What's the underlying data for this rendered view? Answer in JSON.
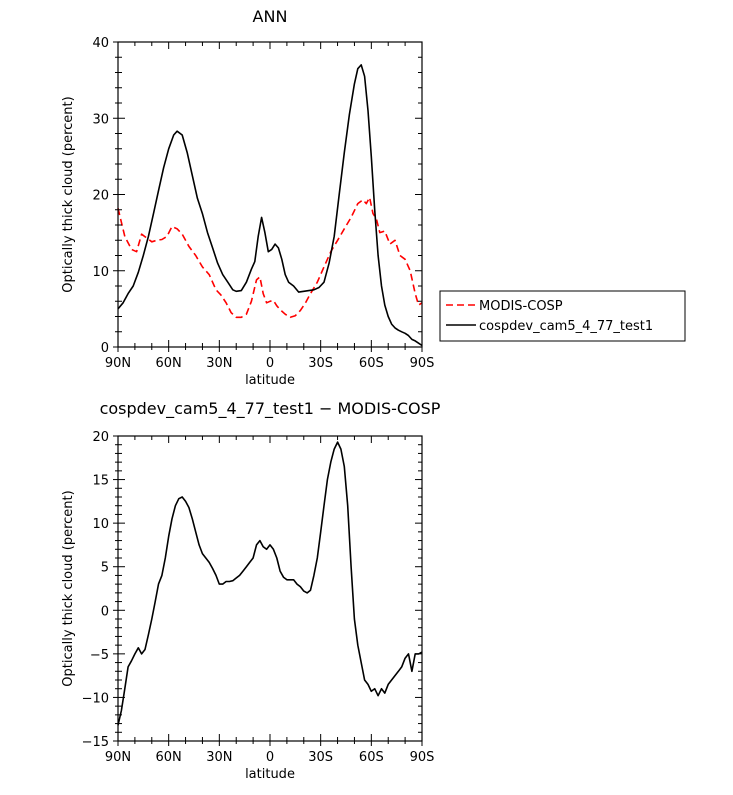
{
  "chart_data": [
    {
      "type": "line",
      "title": "ANN",
      "xlabel": "latitude",
      "ylabel": "Optically thick cloud (percent)",
      "xlim": [
        90,
        -90
      ],
      "ylim": [
        0,
        40
      ],
      "xticks": [
        90,
        60,
        30,
        0,
        -30,
        -60,
        -90
      ],
      "xtick_labels": [
        "90N",
        "60N",
        "30N",
        "0",
        "30S",
        "60S",
        "90S"
      ],
      "yticks": [
        0,
        10,
        20,
        30,
        40
      ],
      "ytick_labels": [
        "0",
        "10",
        "20",
        "30",
        "40"
      ],
      "legend": {
        "placement": "outside-right",
        "entries": [
          "MODIS-COSP",
          "cospdev_cam5_4_77_test1"
        ]
      },
      "series": [
        {
          "name": "MODIS-COSP",
          "color": "#ff0000",
          "style": "dashed",
          "x": [
            90,
            86,
            82,
            79,
            76,
            73,
            70,
            67,
            64,
            61,
            58,
            55,
            52,
            48,
            44,
            40,
            36,
            32,
            29,
            26,
            23,
            20,
            17,
            14,
            11,
            8,
            6,
            4,
            2,
            0,
            -2,
            -4,
            -6,
            -9,
            -12,
            -15,
            -18,
            -21,
            -24,
            -28,
            -32,
            -36,
            -40,
            -44,
            -48,
            -52,
            -55,
            -57,
            -59,
            -61,
            -63,
            -65,
            -68,
            -71,
            -74,
            -77,
            -80,
            -83,
            -86,
            -88,
            -90
          ],
          "y": [
            18.2,
            14.5,
            12.8,
            12.5,
            14.8,
            14.3,
            13.8,
            14.0,
            14.1,
            14.5,
            15.8,
            15.5,
            14.8,
            13.2,
            12.0,
            10.5,
            9.5,
            7.5,
            6.8,
            5.8,
            4.5,
            3.9,
            3.9,
            4.3,
            6.0,
            8.8,
            9.2,
            7.0,
            5.8,
            6.0,
            6.1,
            5.4,
            4.9,
            4.3,
            3.9,
            4.1,
            4.8,
            5.8,
            7.0,
            8.5,
            10.5,
            12.5,
            14.0,
            15.5,
            17.0,
            18.8,
            19.3,
            18.8,
            19.6,
            17.5,
            16.8,
            15.0,
            15.2,
            13.5,
            14.0,
            12.0,
            11.5,
            10.0,
            7.0,
            5.5,
            5.8
          ]
        },
        {
          "name": "cospdev_cam5_4_77_test1",
          "color": "#000000",
          "style": "solid",
          "x": [
            90,
            87,
            84,
            81,
            78,
            75,
            72,
            69,
            66,
            63,
            60,
            57,
            55,
            52,
            49,
            46,
            43,
            40,
            37,
            34,
            31,
            28,
            25,
            22,
            20,
            17,
            14,
            11,
            9,
            7,
            5,
            3,
            1,
            -1,
            -3,
            -5,
            -7,
            -9,
            -11,
            -14,
            -17,
            -20,
            -23,
            -26,
            -29,
            -32,
            -35,
            -38,
            -41,
            -44,
            -47,
            -50,
            -52,
            -54,
            -56,
            -58,
            -60,
            -62,
            -64,
            -66,
            -68,
            -70,
            -72,
            -74,
            -76,
            -78,
            -80,
            -82,
            -84,
            -86,
            -88,
            -90
          ],
          "y": [
            5.0,
            5.8,
            7.0,
            8.0,
            9.8,
            12.0,
            14.5,
            17.5,
            20.5,
            23.5,
            26.0,
            27.8,
            28.3,
            27.8,
            25.5,
            22.5,
            19.5,
            17.5,
            15.0,
            13.0,
            11.0,
            9.5,
            8.5,
            7.5,
            7.3,
            7.4,
            8.5,
            10.2,
            11.2,
            14.5,
            17.0,
            15.0,
            12.5,
            12.8,
            13.5,
            13.0,
            11.5,
            9.5,
            8.5,
            8.0,
            7.2,
            7.3,
            7.4,
            7.5,
            7.8,
            8.5,
            11.0,
            14.5,
            20.0,
            25.5,
            30.5,
            34.5,
            36.5,
            37.0,
            35.5,
            31.0,
            25.0,
            18.0,
            12.0,
            8.0,
            5.5,
            4.0,
            3.0,
            2.5,
            2.2,
            2.0,
            1.8,
            1.5,
            1.0,
            0.8,
            0.5,
            0.2
          ]
        }
      ]
    },
    {
      "type": "line",
      "title": "cospdev_cam5_4_77_test1 − MODIS-COSP",
      "xlabel": "latitude",
      "ylabel": "Optically thick cloud (percent)",
      "xlim": [
        90,
        -90
      ],
      "ylim": [
        -15,
        20
      ],
      "xticks": [
        90,
        60,
        30,
        0,
        -30,
        -60,
        -90
      ],
      "xtick_labels": [
        "90N",
        "60N",
        "30N",
        "0",
        "30S",
        "60S",
        "90S"
      ],
      "yticks": [
        -15,
        -10,
        -5,
        0,
        5,
        10,
        15,
        20
      ],
      "ytick_labels": [
        "−15",
        "−10",
        "−5",
        "0",
        "5",
        "10",
        "15",
        "20"
      ],
      "series": [
        {
          "color": "#000000",
          "style": "solid",
          "x": [
            90,
            88,
            86,
            84,
            82,
            80,
            78,
            76,
            74,
            72,
            70,
            68,
            66,
            64,
            62,
            60,
            58,
            56,
            54,
            52,
            50,
            48,
            46,
            44,
            42,
            40,
            38,
            36,
            34,
            32,
            30,
            28,
            26,
            24,
            22,
            20,
            18,
            16,
            14,
            12,
            10,
            8,
            6,
            4,
            2,
            0,
            -2,
            -4,
            -6,
            -8,
            -10,
            -12,
            -14,
            -16,
            -18,
            -20,
            -22,
            -24,
            -26,
            -28,
            -30,
            -32,
            -34,
            -36,
            -38,
            -40,
            -42,
            -44,
            -46,
            -48,
            -50,
            -52,
            -54,
            -56,
            -58,
            -60,
            -62,
            -64,
            -66,
            -68,
            -70,
            -72,
            -74,
            -76,
            -78,
            -80,
            -82,
            -84,
            -86,
            -88,
            -90
          ],
          "y": [
            -13.2,
            -11.5,
            -9.0,
            -6.5,
            -5.8,
            -5.0,
            -4.3,
            -5.0,
            -4.5,
            -2.8,
            -1.0,
            1.0,
            3.0,
            4.0,
            6.0,
            8.5,
            10.5,
            12.0,
            12.8,
            13.0,
            12.5,
            11.8,
            10.5,
            9.0,
            7.5,
            6.5,
            6.0,
            5.5,
            4.8,
            4.0,
            3.0,
            3.0,
            3.3,
            3.3,
            3.4,
            3.7,
            4.0,
            4.5,
            5.0,
            5.5,
            6.0,
            7.5,
            8.0,
            7.3,
            7.0,
            7.5,
            7.0,
            6.0,
            4.5,
            3.8,
            3.5,
            3.5,
            3.5,
            3.0,
            2.7,
            2.2,
            2.0,
            2.3,
            4.0,
            6.0,
            9.0,
            12.0,
            15.0,
            17.0,
            18.5,
            19.3,
            18.5,
            16.5,
            12.0,
            5.0,
            -1.0,
            -4.0,
            -6.0,
            -8.0,
            -8.5,
            -9.3,
            -9.0,
            -9.8,
            -9.0,
            -9.5,
            -8.5,
            -8.0,
            -7.5,
            -7.0,
            -6.5,
            -5.5,
            -5.0,
            -7.0,
            -5.0,
            -5.0,
            -4.8
          ]
        }
      ]
    }
  ]
}
